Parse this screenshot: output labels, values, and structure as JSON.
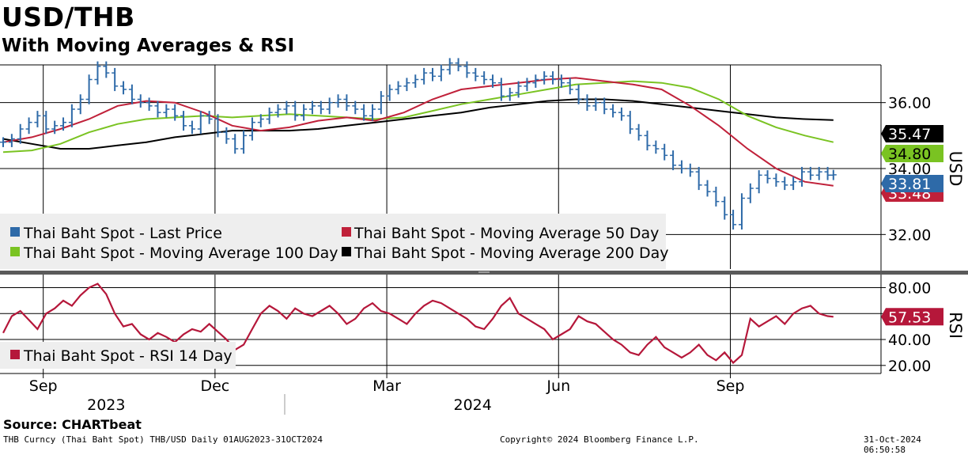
{
  "title": "USD/THB",
  "subtitle": "With Moving Averages & RSI",
  "source": "Source: CHARTbeat",
  "footer": {
    "left": "THB Curncy (Thai Baht Spot) THB/USD  Daily 01AUG2023-31OCT2024",
    "center": "Copyright© 2024 Bloomberg Finance L.P.",
    "right": "31-Oct-2024 06:50:58"
  },
  "colors": {
    "price": "#2e6aa8",
    "ma50": "#c0213a",
    "ma100": "#7ac322",
    "ma200": "#000000",
    "rsi": "#b5173a",
    "legend_bg": "#eeeeee"
  },
  "chart_data": [
    {
      "type": "line",
      "panel": "price",
      "y_axis_title": "USD",
      "ylim": [
        31.0,
        37.0
      ],
      "yticks": [
        32.0,
        34.0,
        36.0
      ],
      "ytick_labels": [
        "32.00",
        "34.00",
        "36.00"
      ],
      "last_value_tags": [
        {
          "series": "ma200",
          "label": "35.47",
          "value": 35.47
        },
        {
          "series": "ma100",
          "label": "34.80",
          "value": 34.8
        },
        {
          "series": "price",
          "label": "33.81",
          "value": 33.81
        },
        {
          "series": "ma50",
          "label": "33.48",
          "value": 33.48
        }
      ],
      "x_months": [
        {
          "label": "Sep",
          "index": 0.7
        },
        {
          "label": "Dec",
          "index": 3.7
        },
        {
          "label": "Mar",
          "index": 6.7
        },
        {
          "label": "Jun",
          "index": 9.7
        },
        {
          "label": "Sep",
          "index": 12.7
        }
      ],
      "x_years": [
        {
          "label": "2023",
          "index": 1.8
        },
        {
          "label": "2024",
          "index": 8.2
        }
      ],
      "x_range": [
        0,
        15
      ],
      "series": [
        {
          "key": "price",
          "name": "Thai Baht Spot - Last Price",
          "x": [
            0,
            0.15,
            0.3,
            0.45,
            0.6,
            0.75,
            0.9,
            1.05,
            1.2,
            1.35,
            1.5,
            1.65,
            1.8,
            1.95,
            2.1,
            2.25,
            2.4,
            2.55,
            2.7,
            2.85,
            3.0,
            3.15,
            3.3,
            3.45,
            3.6,
            3.75,
            3.9,
            4.05,
            4.2,
            4.35,
            4.5,
            4.65,
            4.8,
            4.95,
            5.1,
            5.25,
            5.4,
            5.55,
            5.7,
            5.85,
            6.0,
            6.15,
            6.3,
            6.45,
            6.6,
            6.75,
            6.9,
            7.05,
            7.2,
            7.35,
            7.5,
            7.65,
            7.8,
            7.95,
            8.1,
            8.25,
            8.4,
            8.55,
            8.7,
            8.85,
            9.0,
            9.15,
            9.3,
            9.45,
            9.6,
            9.75,
            9.9,
            10.05,
            10.2,
            10.35,
            10.5,
            10.65,
            10.8,
            10.95,
            11.1,
            11.25,
            11.4,
            11.55,
            11.7,
            11.85,
            12.0,
            12.15,
            12.3,
            12.45,
            12.6,
            12.75,
            12.9,
            13.05,
            13.2,
            13.35,
            13.5,
            13.65,
            13.8,
            13.95,
            14.1,
            14.25,
            14.4,
            14.5
          ],
          "values": [
            34.8,
            34.9,
            35.2,
            35.4,
            35.6,
            35.2,
            35.3,
            35.4,
            35.8,
            36.1,
            36.7,
            37.1,
            36.9,
            36.5,
            36.4,
            36.1,
            36.0,
            35.9,
            35.7,
            35.8,
            35.6,
            35.3,
            35.2,
            35.6,
            35.5,
            35.1,
            34.9,
            34.6,
            35.0,
            35.4,
            35.5,
            35.7,
            35.8,
            35.9,
            35.6,
            35.8,
            35.9,
            35.8,
            36.0,
            36.1,
            35.9,
            35.8,
            35.6,
            35.8,
            36.2,
            36.4,
            36.5,
            36.6,
            36.7,
            36.9,
            36.8,
            37.0,
            37.2,
            37.1,
            36.9,
            36.8,
            36.7,
            36.6,
            36.2,
            36.3,
            36.5,
            36.6,
            36.7,
            36.8,
            36.7,
            36.6,
            36.4,
            36.1,
            35.9,
            36.0,
            35.8,
            35.7,
            35.6,
            35.2,
            35.0,
            34.7,
            34.6,
            34.4,
            34.1,
            34.0,
            33.9,
            33.5,
            33.3,
            33.0,
            32.6,
            32.3,
            33.1,
            33.4,
            33.8,
            33.7,
            33.6,
            33.5,
            33.6,
            33.9,
            33.8,
            33.9,
            33.8,
            33.81
          ]
        },
        {
          "key": "ma50",
          "name": "Thai Baht Spot - Moving Average 50 Day",
          "x": [
            0,
            0.5,
            1.0,
            1.5,
            2.0,
            2.5,
            3.0,
            3.5,
            4.0,
            4.5,
            5.0,
            5.5,
            6.0,
            6.5,
            7.0,
            7.5,
            8.0,
            8.5,
            9.0,
            9.5,
            10.0,
            10.5,
            11.0,
            11.5,
            12.0,
            12.5,
            13.0,
            13.5,
            14.0,
            14.5
          ],
          "values": [
            34.8,
            34.95,
            35.2,
            35.5,
            35.9,
            36.05,
            36.0,
            35.7,
            35.3,
            35.15,
            35.25,
            35.45,
            35.55,
            35.45,
            35.7,
            36.1,
            36.4,
            36.5,
            36.6,
            36.7,
            36.75,
            36.65,
            36.55,
            36.4,
            35.9,
            35.3,
            34.6,
            34.0,
            33.6,
            33.48
          ]
        },
        {
          "key": "ma100",
          "name": "Thai Baht Spot - Moving Average 100 Day",
          "x": [
            0,
            0.5,
            1.0,
            1.5,
            2.0,
            2.5,
            3.0,
            3.5,
            4.0,
            4.5,
            5.0,
            5.5,
            6.0,
            6.5,
            7.0,
            7.5,
            8.0,
            8.5,
            9.0,
            9.5,
            10.0,
            10.5,
            11.0,
            11.5,
            12.0,
            12.5,
            13.0,
            13.5,
            14.0,
            14.5
          ],
          "values": [
            34.5,
            34.55,
            34.75,
            35.1,
            35.35,
            35.5,
            35.55,
            35.6,
            35.55,
            35.6,
            35.65,
            35.6,
            35.55,
            35.5,
            35.55,
            35.75,
            35.95,
            36.1,
            36.25,
            36.4,
            36.55,
            36.6,
            36.65,
            36.6,
            36.45,
            36.1,
            35.6,
            35.25,
            35.0,
            34.8
          ]
        },
        {
          "key": "ma200",
          "name": "Thai Baht Spot - Moving Average 200 Day",
          "x": [
            0,
            0.5,
            1.0,
            1.5,
            2.0,
            2.5,
            3.0,
            3.5,
            4.0,
            4.5,
            5.0,
            5.5,
            6.0,
            6.5,
            7.0,
            7.5,
            8.0,
            8.5,
            9.0,
            9.5,
            10.0,
            10.5,
            11.0,
            11.5,
            12.0,
            12.5,
            13.0,
            13.5,
            14.0,
            14.5
          ],
          "values": [
            34.9,
            34.75,
            34.6,
            34.6,
            34.7,
            34.8,
            34.95,
            35.05,
            35.15,
            35.15,
            35.15,
            35.2,
            35.3,
            35.4,
            35.5,
            35.6,
            35.7,
            35.85,
            35.95,
            36.05,
            36.1,
            36.1,
            36.05,
            35.95,
            35.85,
            35.75,
            35.65,
            35.55,
            35.5,
            35.47
          ]
        }
      ]
    },
    {
      "type": "line",
      "panel": "rsi",
      "y_axis_title": "RSI",
      "ylim": [
        15,
        87
      ],
      "yticks": [
        20.0,
        40.0,
        60.0,
        80.0
      ],
      "ytick_labels": [
        "20.00",
        "40.00",
        "60.00",
        "80.00"
      ],
      "last_value_tags": [
        {
          "series": "rsi",
          "label": "57.53",
          "value": 57.53
        }
      ],
      "x_range": [
        0,
        15
      ],
      "series": [
        {
          "key": "rsi",
          "name": "Thai Baht Spot - RSI 14 Day",
          "x": [
            0,
            0.15,
            0.3,
            0.45,
            0.6,
            0.75,
            0.9,
            1.05,
            1.2,
            1.35,
            1.5,
            1.65,
            1.8,
            1.95,
            2.1,
            2.25,
            2.4,
            2.55,
            2.7,
            2.85,
            3.0,
            3.15,
            3.3,
            3.45,
            3.6,
            3.75,
            3.9,
            4.05,
            4.2,
            4.35,
            4.5,
            4.65,
            4.8,
            4.95,
            5.1,
            5.25,
            5.4,
            5.55,
            5.7,
            5.85,
            6.0,
            6.15,
            6.3,
            6.45,
            6.6,
            6.75,
            6.9,
            7.05,
            7.2,
            7.35,
            7.5,
            7.65,
            7.8,
            7.95,
            8.1,
            8.25,
            8.4,
            8.55,
            8.7,
            8.85,
            9.0,
            9.15,
            9.3,
            9.45,
            9.6,
            9.75,
            9.9,
            10.05,
            10.2,
            10.35,
            10.5,
            10.65,
            10.8,
            10.95,
            11.1,
            11.25,
            11.4,
            11.55,
            11.7,
            11.85,
            12.0,
            12.15,
            12.3,
            12.45,
            12.6,
            12.75,
            12.9,
            13.05,
            13.2,
            13.35,
            13.5,
            13.65,
            13.8,
            13.95,
            14.1,
            14.25,
            14.4,
            14.5
          ],
          "values": [
            45,
            58,
            62,
            55,
            48,
            60,
            64,
            70,
            66,
            74,
            80,
            83,
            75,
            60,
            50,
            52,
            44,
            40,
            45,
            42,
            38,
            44,
            48,
            46,
            52,
            46,
            40,
            32,
            36,
            48,
            60,
            66,
            62,
            56,
            64,
            60,
            58,
            62,
            66,
            60,
            52,
            56,
            64,
            68,
            62,
            60,
            56,
            52,
            60,
            66,
            70,
            68,
            64,
            60,
            56,
            50,
            48,
            56,
            66,
            72,
            60,
            56,
            52,
            48,
            40,
            44,
            48,
            58,
            54,
            52,
            46,
            40,
            36,
            30,
            28,
            36,
            42,
            34,
            30,
            26,
            30,
            36,
            28,
            24,
            30,
            22,
            28,
            56,
            50,
            54,
            58,
            52,
            60,
            64,
            66,
            60,
            58,
            57.53
          ]
        }
      ]
    }
  ],
  "legend": {
    "price_panel": [
      {
        "series": "price",
        "label": "Thai Baht Spot - Last Price"
      },
      {
        "series": "ma50",
        "label": "Thai Baht Spot - Moving Average 50 Day"
      },
      {
        "series": "ma100",
        "label": "Thai Baht Spot - Moving Average 100 Day"
      },
      {
        "series": "ma200",
        "label": "Thai Baht Spot - Moving Average 200 Day"
      }
    ],
    "rsi_panel": [
      {
        "series": "rsi",
        "label": "Thai Baht Spot - RSI 14 Day"
      }
    ]
  }
}
